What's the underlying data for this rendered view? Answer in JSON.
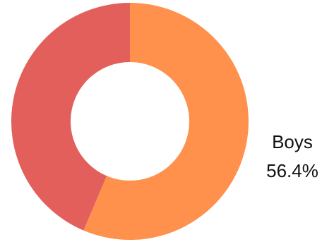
{
  "chart_data": {
    "type": "pie",
    "style": "donut",
    "title": "",
    "slices": [
      {
        "label": "Boys",
        "value": 56.4,
        "value_label": "56.4%",
        "color": "#FF914D",
        "show_label": true
      },
      {
        "label": "",
        "value": 43.6,
        "value_label": "",
        "color": "#E35F5B",
        "show_label": false
      }
    ],
    "legend": "none"
  }
}
